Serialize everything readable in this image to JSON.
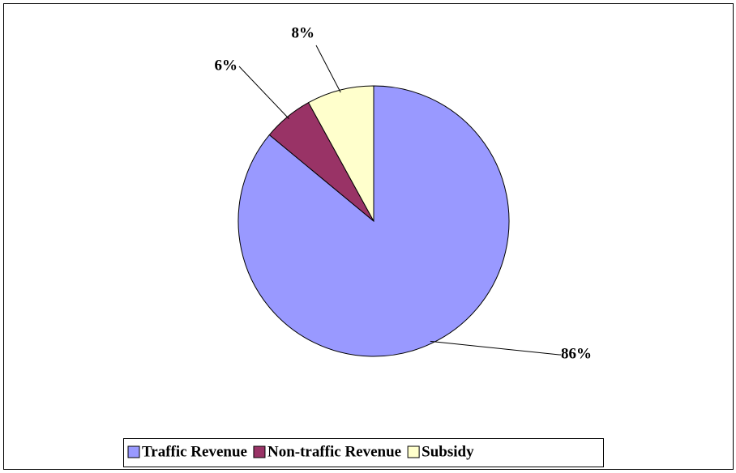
{
  "chart_data": {
    "type": "pie",
    "categories": [
      "Traffic Revenue",
      "Non-traffic Revenue",
      "Subsidy"
    ],
    "values": [
      86,
      6,
      8
    ],
    "value_labels": [
      "86%",
      "6%",
      "8%"
    ],
    "colors": [
      "#9999ff",
      "#993366",
      "#ffffcc"
    ],
    "legend": "bottom"
  }
}
